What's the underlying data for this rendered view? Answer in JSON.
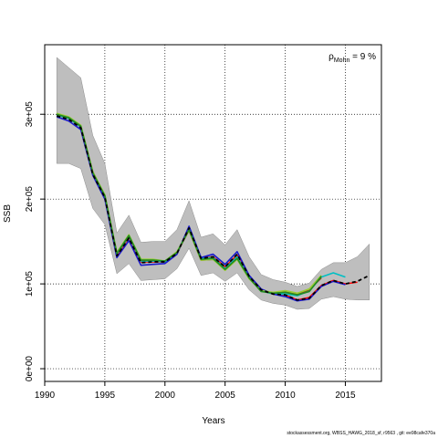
{
  "chart_data": {
    "type": "line",
    "xlabel": "Years",
    "ylabel": "SSB",
    "xlim": [
      1990,
      2018
    ],
    "ylim": [
      -15000,
      382000
    ],
    "x_ticks": [
      1990,
      1995,
      2000,
      2005,
      2010,
      2015
    ],
    "x_tick_labels": [
      "1990",
      "1995",
      "2000",
      "2005",
      "2010",
      "2015"
    ],
    "y_ticks": [
      0,
      100000,
      200000,
      300000
    ],
    "y_tick_labels": [
      "0e+00",
      "1e+05",
      "2e+05",
      "3e+05"
    ],
    "grid": "dotted",
    "annotation": {
      "symbol": "ρ",
      "subscript": "Mohn",
      "text": " = 9 %",
      "placement": "top-right"
    },
    "band": {
      "x": [
        1991,
        1992,
        1993,
        1994,
        1995,
        1996,
        1997,
        1998,
        1999,
        2000,
        2001,
        2002,
        2003,
        2004,
        2005,
        2006,
        2007,
        2008,
        2009,
        2010,
        2011,
        2012,
        2013,
        2014,
        2015,
        2016,
        2017
      ],
      "upper": [
        367000,
        355000,
        343000,
        275000,
        242000,
        160000,
        181000,
        149000,
        150000,
        150000,
        164000,
        198000,
        155000,
        159000,
        146000,
        164000,
        132000,
        111000,
        105000,
        102000,
        97000,
        101000,
        117000,
        125000,
        125000,
        132000,
        147000
      ],
      "lower": [
        242000,
        242000,
        236000,
        189000,
        170000,
        112000,
        124000,
        104000,
        105000,
        106000,
        118000,
        142000,
        110000,
        113000,
        103000,
        113000,
        93000,
        81000,
        77000,
        75000,
        70000,
        71000,
        82000,
        85000,
        82000,
        81000,
        81000
      ]
    },
    "series": [
      {
        "color": "#000000",
        "dashed": true,
        "x": [
          1991,
          1992,
          1993,
          1994,
          1995,
          1996,
          1997,
          1998,
          1999,
          2000,
          2001,
          2002,
          2003,
          2004,
          2005,
          2006,
          2007,
          2008,
          2009,
          2010,
          2011,
          2012,
          2013,
          2014,
          2015,
          2016,
          2017
        ],
        "y": [
          298000,
          294000,
          284000,
          229000,
          202000,
          133000,
          154000,
          125000,
          126000,
          126000,
          136000,
          166000,
          130000,
          132000,
          120000,
          135000,
          109000,
          93000,
          88000,
          87000,
          81000,
          83000,
          98000,
          104000,
          100000,
          103000,
          110000
        ]
      },
      {
        "color": "#ff0000",
        "dashed": false,
        "x": [
          1991,
          1992,
          1993,
          1994,
          1995,
          1996,
          1997,
          1998,
          1999,
          2000,
          2001,
          2002,
          2003,
          2004,
          2005,
          2006,
          2007,
          2008,
          2009,
          2010,
          2011,
          2012,
          2013,
          2014,
          2015,
          2016
        ],
        "y": [
          299000,
          295000,
          285000,
          230000,
          202000,
          133000,
          155000,
          126000,
          126000,
          126000,
          136000,
          165000,
          130000,
          132000,
          120000,
          134000,
          109000,
          93000,
          88000,
          87000,
          81000,
          84000,
          98000,
          104000,
          100000,
          102000
        ]
      },
      {
        "color": "#00bfc4",
        "dashed": false,
        "x": [
          1991,
          1992,
          1993,
          1994,
          1995,
          1996,
          1997,
          1998,
          1999,
          2000,
          2001,
          2002,
          2003,
          2004,
          2005,
          2006,
          2007,
          2008,
          2009,
          2010,
          2011,
          2012,
          2013,
          2014,
          2015
        ],
        "y": [
          299000,
          295000,
          285000,
          230000,
          203000,
          135000,
          156000,
          127000,
          127000,
          126000,
          137000,
          165000,
          130000,
          131000,
          118000,
          132000,
          108000,
          92000,
          88000,
          88000,
          86000,
          92000,
          108000,
          113000,
          108000
        ]
      },
      {
        "color": "#1a1acd",
        "dashed": false,
        "x": [
          1991,
          1992,
          1993,
          1994,
          1995,
          1996,
          1997,
          1998,
          1999,
          2000,
          2001,
          2002,
          2003,
          2004,
          2005,
          2006,
          2007,
          2008,
          2009,
          2010,
          2011,
          2012,
          2013,
          2014,
          2015
        ],
        "y": [
          297000,
          292000,
          282000,
          228000,
          200000,
          131000,
          151000,
          122000,
          123000,
          124000,
          135000,
          168000,
          131000,
          135000,
          123000,
          138000,
          110000,
          94000,
          88000,
          85000,
          80000,
          82000,
          97000,
          103000,
          99000
        ]
      },
      {
        "color": "#8b4513",
        "dashed": false,
        "x": [
          1991,
          1992,
          1993,
          1994,
          1995,
          1996,
          1997,
          1998,
          1999,
          2000,
          2001,
          2002,
          2003,
          2004,
          2005,
          2006,
          2007,
          2008,
          2009,
          2010,
          2011,
          2012,
          2013
        ],
        "y": [
          300000,
          296000,
          286000,
          232000,
          204000,
          136000,
          157000,
          128000,
          128000,
          127000,
          137000,
          163000,
          128000,
          129000,
          117000,
          130000,
          107000,
          92000,
          89000,
          91000,
          88000,
          93000,
          107000
        ]
      },
      {
        "color": "#9acd32",
        "dashed": false,
        "x": [
          1991,
          1992,
          1993,
          1994,
          1995,
          1996,
          1997,
          1998,
          1999,
          2000,
          2001,
          2002,
          2003,
          2004,
          2005,
          2006,
          2007,
          2008,
          2009,
          2010,
          2011,
          2012,
          2013
        ],
        "y": [
          301000,
          297000,
          287000,
          232000,
          205000,
          137000,
          158000,
          129000,
          129000,
          127000,
          138000,
          163000,
          128000,
          129000,
          116000,
          129000,
          106000,
          92000,
          90000,
          92000,
          89000,
          94000,
          110000
        ]
      },
      {
        "color": "#228b22",
        "dashed": false,
        "x": [
          1991,
          1992,
          1993,
          1994,
          1995,
          1996,
          1997,
          1998,
          1999,
          2000,
          2001,
          2002,
          2003,
          2004,
          2005,
          2006,
          2007,
          2008,
          2009,
          2010,
          2011,
          2012,
          2013
        ],
        "y": [
          300000,
          296000,
          286000,
          231000,
          204000,
          136000,
          157000,
          128000,
          128000,
          127000,
          137000,
          164000,
          129000,
          130000,
          117000,
          130000,
          107000,
          91000,
          89000,
          90000,
          87000,
          91000,
          109000
        ]
      }
    ]
  },
  "footer": {
    "text": "stockassessment.org, WBSS_HAWG_2018_sf, r9563 , git: ee98cafe370a"
  }
}
